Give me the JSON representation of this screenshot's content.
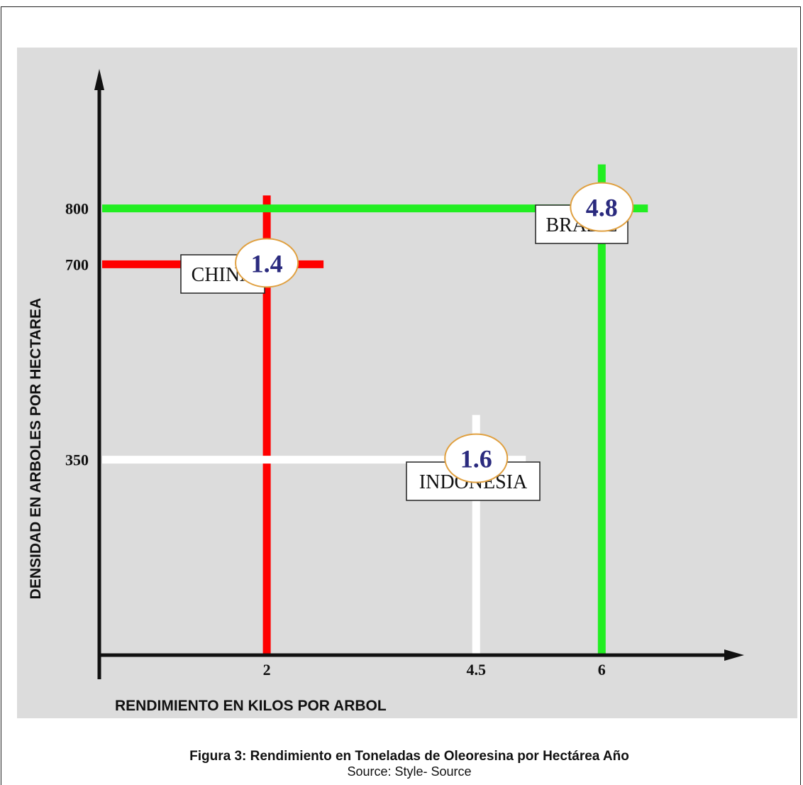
{
  "chart_data": {
    "type": "scatter",
    "title": "",
    "xlabel": "RENDIMIENTO EN KILOS POR ARBOL",
    "ylabel": "DENSIDAD EN ARBOLES POR HECTAREA",
    "x_ticks": [
      {
        "value": 2,
        "label": "2"
      },
      {
        "value": 4.5,
        "label": "4.5"
      },
      {
        "value": 6,
        "label": "6"
      }
    ],
    "y_ticks": [
      {
        "value": 350,
        "label": "350"
      },
      {
        "value": 700,
        "label": "700"
      },
      {
        "value": 800,
        "label": "800"
      }
    ],
    "xlim": [
      0,
      7.7
    ],
    "ylim": [
      0,
      1050
    ],
    "grid": false,
    "background": "#dcdcdc",
    "points": [
      {
        "name": "CHINA",
        "x": 2,
        "y": 700,
        "value": "1.4",
        "color": "#ff0000"
      },
      {
        "name": "BRAZIL",
        "x": 6,
        "y": 800,
        "value": "4.8",
        "color": "#22ee22"
      },
      {
        "name": "INDONESIA",
        "x": 4.5,
        "y": 350,
        "value": "1.6",
        "color": "#ffffff"
      }
    ],
    "value_label_color": "#2a2a7e",
    "badge_border_color": "#e0a040"
  },
  "caption": {
    "title": "Figura 3: Rendimiento en Toneladas de Oleoresina por Hectárea Año",
    "source": "Source: Style- Source"
  }
}
